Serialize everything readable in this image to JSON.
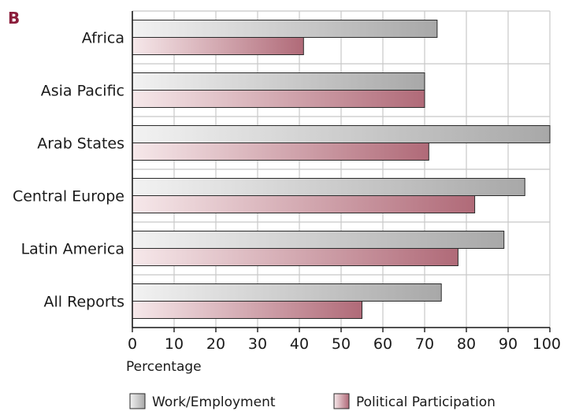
{
  "panel_label": "B",
  "colors": {
    "work_dark": "#a8a8a8",
    "work_light": "#f2f2f2",
    "political_dark": "#b06a78",
    "political_light": "#f6e8ea",
    "grid": "#c8c8c8",
    "axis": "#1a1a1a",
    "panel_label": "#8b1d3b"
  },
  "chart_data": {
    "type": "bar",
    "orientation": "horizontal",
    "categories": [
      "Africa",
      "Asia Pacific",
      "Arab States",
      "Central Europe",
      "Latin America",
      "All Reports"
    ],
    "series": [
      {
        "name": "Work/Employment",
        "values": [
          73,
          70,
          100,
          94,
          89,
          74
        ]
      },
      {
        "name": "Political Participation",
        "values": [
          41,
          70,
          71,
          82,
          78,
          55
        ]
      }
    ],
    "xlabel": "Percentage",
    "ylabel": "",
    "xlim": [
      0,
      100
    ],
    "xticks": [
      0,
      10,
      20,
      30,
      40,
      50,
      60,
      70,
      80,
      90,
      100
    ],
    "grid": true,
    "legend_position": "bottom"
  }
}
